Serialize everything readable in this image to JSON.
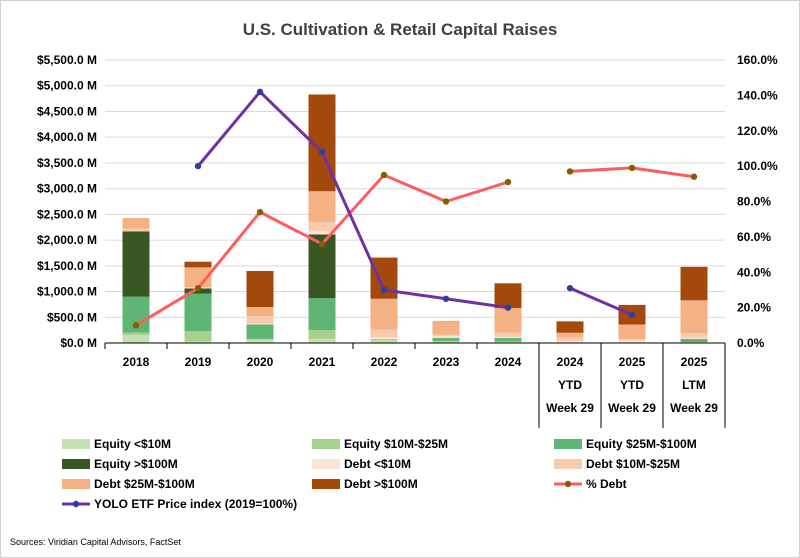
{
  "chart_data": {
    "type": "bar",
    "stacked": true,
    "title": "U.S. Cultivation & Retail Capital Raises",
    "categories": [
      {
        "lines": [
          "2018"
        ]
      },
      {
        "lines": [
          "2019"
        ]
      },
      {
        "lines": [
          "2020"
        ]
      },
      {
        "lines": [
          "2021"
        ]
      },
      {
        "lines": [
          "2022"
        ]
      },
      {
        "lines": [
          "2023"
        ]
      },
      {
        "lines": [
          "2024"
        ]
      },
      {
        "lines": [
          "2024",
          "YTD",
          "Week 29"
        ]
      },
      {
        "lines": [
          "2025",
          "YTD",
          "Week 29"
        ]
      },
      {
        "lines": [
          "2025",
          "LTM",
          "Week 29"
        ]
      }
    ],
    "y_left": {
      "min": 0,
      "max": 5500,
      "step": 500,
      "tick_labels": [
        "$0.0 M",
        "$500.0 M",
        "$1,000.0 M",
        "$1,500.0 M",
        "$2,000.0 M",
        "$2,500.0 M",
        "$3,000.0 M",
        "$3,500.0 M",
        "$4,000.0 M",
        "$4,500.0 M",
        "$5,000.0 M",
        "$5,500.0 M"
      ]
    },
    "y_right": {
      "min": 0,
      "max": 160,
      "step": 20,
      "tick_labels": [
        "0.0%",
        "20.0%",
        "40.0%",
        "60.0%",
        "80.0%",
        "100.0%",
        "120.0%",
        "140.0%",
        "160.0%"
      ]
    },
    "series": [
      {
        "name": "Equity <$10M",
        "kind": "bar",
        "color": "#c6e0b4",
        "values": [
          150,
          30,
          60,
          80,
          50,
          20,
          15,
          10,
          10,
          20
        ]
      },
      {
        "name": "Equity $10M-$25M",
        "kind": "bar",
        "color": "#a9d18e",
        "values": [
          50,
          200,
          20,
          170,
          30,
          20,
          15,
          0,
          0,
          0
        ]
      },
      {
        "name": "Equity $25M-$100M",
        "kind": "bar",
        "color": "#5eb574",
        "values": [
          700,
          730,
          280,
          620,
          0,
          60,
          70,
          0,
          0,
          60
        ]
      },
      {
        "name": "Equity >$100M",
        "kind": "bar",
        "color": "#385723",
        "values": [
          1270,
          100,
          0,
          1240,
          0,
          0,
          0,
          0,
          0,
          0
        ]
      },
      {
        "name": "Debt <$10M",
        "kind": "bar",
        "color": "#fbe5d6",
        "values": [
          0,
          20,
          20,
          60,
          30,
          30,
          20,
          30,
          40,
          20
        ]
      },
      {
        "name": "Debt $10M-$25M",
        "kind": "bar",
        "color": "#f8cbad",
        "values": [
          50,
          0,
          140,
          180,
          150,
          30,
          80,
          70,
          30,
          90
        ]
      },
      {
        "name": "Debt $25M-$100M",
        "kind": "bar",
        "color": "#f4b183",
        "values": [
          210,
          390,
          180,
          600,
          600,
          270,
          480,
          90,
          280,
          640
        ]
      },
      {
        "name": "Debt >$100M",
        "kind": "bar",
        "color": "#a5480c",
        "values": [
          0,
          110,
          700,
          1880,
          800,
          0,
          480,
          220,
          380,
          650
        ]
      },
      {
        "name": "% Debt",
        "kind": "line",
        "axis": "right",
        "color": "#ff5d5d",
        "marker_color": "#806000",
        "values": [
          10,
          31,
          74,
          56,
          95,
          80,
          91,
          97,
          99,
          94
        ]
      },
      {
        "name": "YOLO ETF Price index (2019=100%)",
        "kind": "line",
        "axis": "right",
        "color": "#7030a0",
        "marker_color": "#2f3f9e",
        "values": [
          null,
          100,
          142,
          108,
          30,
          25,
          20,
          31,
          16,
          null
        ]
      }
    ],
    "legend": {
      "position": "bottom",
      "columns": 3
    }
  },
  "footer": {
    "source": "Sources: Viridian Capital Advisors, FactSet"
  }
}
